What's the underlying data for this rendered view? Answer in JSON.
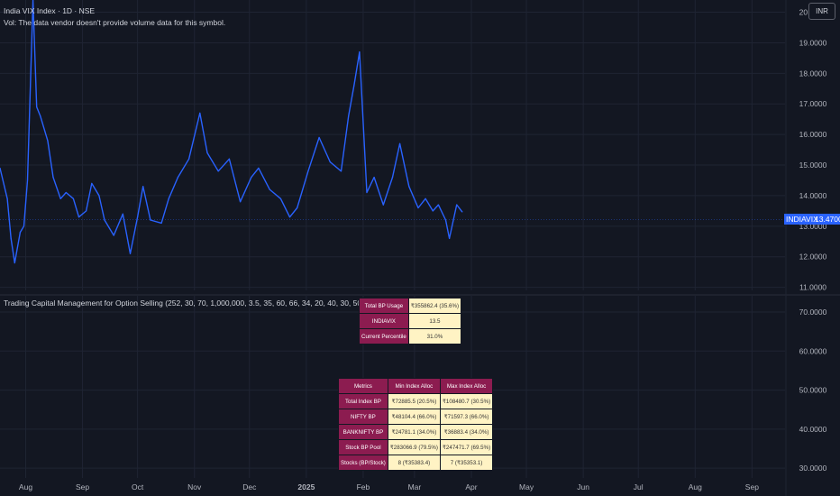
{
  "header": {
    "title": "India VIX Index · 1D · NSE",
    "vol_notice": "Vol: The data vendor doesn't provide volume data for this symbol.",
    "currency_button": "INR"
  },
  "indicator": {
    "label": "Trading Capital Management for Option Selling (252, 30, 70, 1,000,000, 3.5, 35, 60, 66, 34, 20, 40, 30, 50, small)"
  },
  "price_tag": {
    "symbol": "INDIAVIX",
    "value": "13.4700"
  },
  "summary_table": [
    {
      "label": "Total BP Usage",
      "value": "₹355862.4 (35.6%)"
    },
    {
      "label": "INDIAVIX",
      "value": "13.5"
    },
    {
      "label": "Current Percentile",
      "value": "31.0%"
    }
  ],
  "metrics_table": {
    "headers": [
      "Metrics",
      "Min Index Alloc",
      "Max Index Alloc"
    ],
    "rows": [
      [
        "Total Index BP",
        "₹72885.5 (20.5%)",
        "₹108480.7 (30.5%)"
      ],
      [
        "NIFTY BP",
        "₹48104.4 (66.0%)",
        "₹71597.3 (66.0%)"
      ],
      [
        "BANKNIFTY BP",
        "₹24781.1 (34.0%)",
        "₹36883.4 (34.0%)"
      ],
      [
        "Stock BP Pool",
        "₹283066.9 (79.5%)",
        "₹247471.7 (69.5%)"
      ],
      [
        "Stocks (BP/Stock)",
        "8 (₹35383.4)",
        "7 (₹35353.1)"
      ]
    ]
  },
  "colors": {
    "background": "#131722",
    "line": "#2962ff",
    "grid": "#1f2433",
    "text": "#b2b5be",
    "header_cell": "#8c1c50",
    "value_cell": "#fff3c4"
  },
  "chart_data": [
    {
      "type": "line",
      "title": "India VIX Index · 1D · NSE",
      "series": [],
      "y_ticks": [
        "20.0000",
        "19.0000",
        "18.0000",
        "17.0000",
        "16.0000",
        "15.0000",
        "14.0000",
        "13.0000",
        "12.0000",
        "11.0000"
      ],
      "ylim": [
        10.9,
        20.4
      ],
      "x_ticks": [
        "Aug",
        "Sep",
        "Oct",
        "Nov",
        "Dec",
        "2025",
        "Feb",
        "Mar",
        "Apr",
        "May",
        "Jun",
        "Jul",
        "Aug",
        "Sep"
      ],
      "x_tick_dates": [
        "2024-08-01",
        "2024-09-01",
        "2024-10-01",
        "2024-11-01",
        "2024-12-01",
        "2025-01-01",
        "2025-02-01",
        "2025-03-01",
        "2025-04-01",
        "2025-05-01",
        "2025-06-01",
        "2025-07-01",
        "2025-08-01",
        "2025-09-01"
      ],
      "x": [
        "2024-07-18",
        "2024-07-22",
        "2024-07-24",
        "2024-07-26",
        "2024-07-29",
        "2024-07-31",
        "2024-08-02",
        "2024-08-05",
        "2024-08-07",
        "2024-08-09",
        "2024-08-13",
        "2024-08-16",
        "2024-08-20",
        "2024-08-23",
        "2024-08-27",
        "2024-08-30",
        "2024-09-03",
        "2024-09-06",
        "2024-09-10",
        "2024-09-13",
        "2024-09-18",
        "2024-09-23",
        "2024-09-27",
        "2024-10-01",
        "2024-10-04",
        "2024-10-08",
        "2024-10-14",
        "2024-10-18",
        "2024-10-23",
        "2024-10-29",
        "2024-11-04",
        "2024-11-08",
        "2024-11-14",
        "2024-11-20",
        "2024-11-26",
        "2024-12-02",
        "2024-12-06",
        "2024-12-12",
        "2024-12-18",
        "2024-12-23",
        "2024-12-27",
        "2025-01-02",
        "2025-01-08",
        "2025-01-14",
        "2025-01-20",
        "2025-01-24",
        "2025-01-27",
        "2025-01-30",
        "2025-02-03",
        "2025-02-07",
        "2025-02-12",
        "2025-02-17",
        "2025-02-21",
        "2025-02-26",
        "2025-03-03",
        "2025-03-07",
        "2025-03-11",
        "2025-03-14",
        "2025-03-18",
        "2025-03-20",
        "2025-03-24",
        "2025-03-27"
      ],
      "y": [
        14.9,
        13.9,
        12.6,
        11.8,
        12.8,
        13.0,
        14.5,
        20.4,
        16.9,
        16.6,
        15.8,
        14.6,
        13.9,
        14.1,
        13.9,
        13.3,
        13.5,
        14.4,
        14.0,
        13.2,
        12.7,
        13.4,
        12.1,
        13.3,
        14.3,
        13.2,
        13.1,
        13.9,
        14.6,
        15.2,
        16.7,
        15.4,
        14.8,
        15.2,
        13.8,
        14.6,
        14.9,
        14.2,
        13.9,
        13.3,
        13.6,
        14.8,
        15.9,
        15.1,
        14.8,
        16.6,
        17.6,
        18.7,
        14.1,
        14.6,
        13.7,
        14.6,
        15.7,
        14.3,
        13.6,
        13.9,
        13.5,
        13.7,
        13.2,
        12.6,
        13.7,
        13.47
      ],
      "xlim": [
        "2024-07-18",
        "2025-09-19"
      ]
    },
    {
      "type": "line",
      "series": [],
      "y_ticks": [
        "70.0000",
        "60.0000",
        "50.0000",
        "40.0000",
        "30.0000"
      ],
      "ylim": [
        27.5,
        73
      ]
    }
  ]
}
